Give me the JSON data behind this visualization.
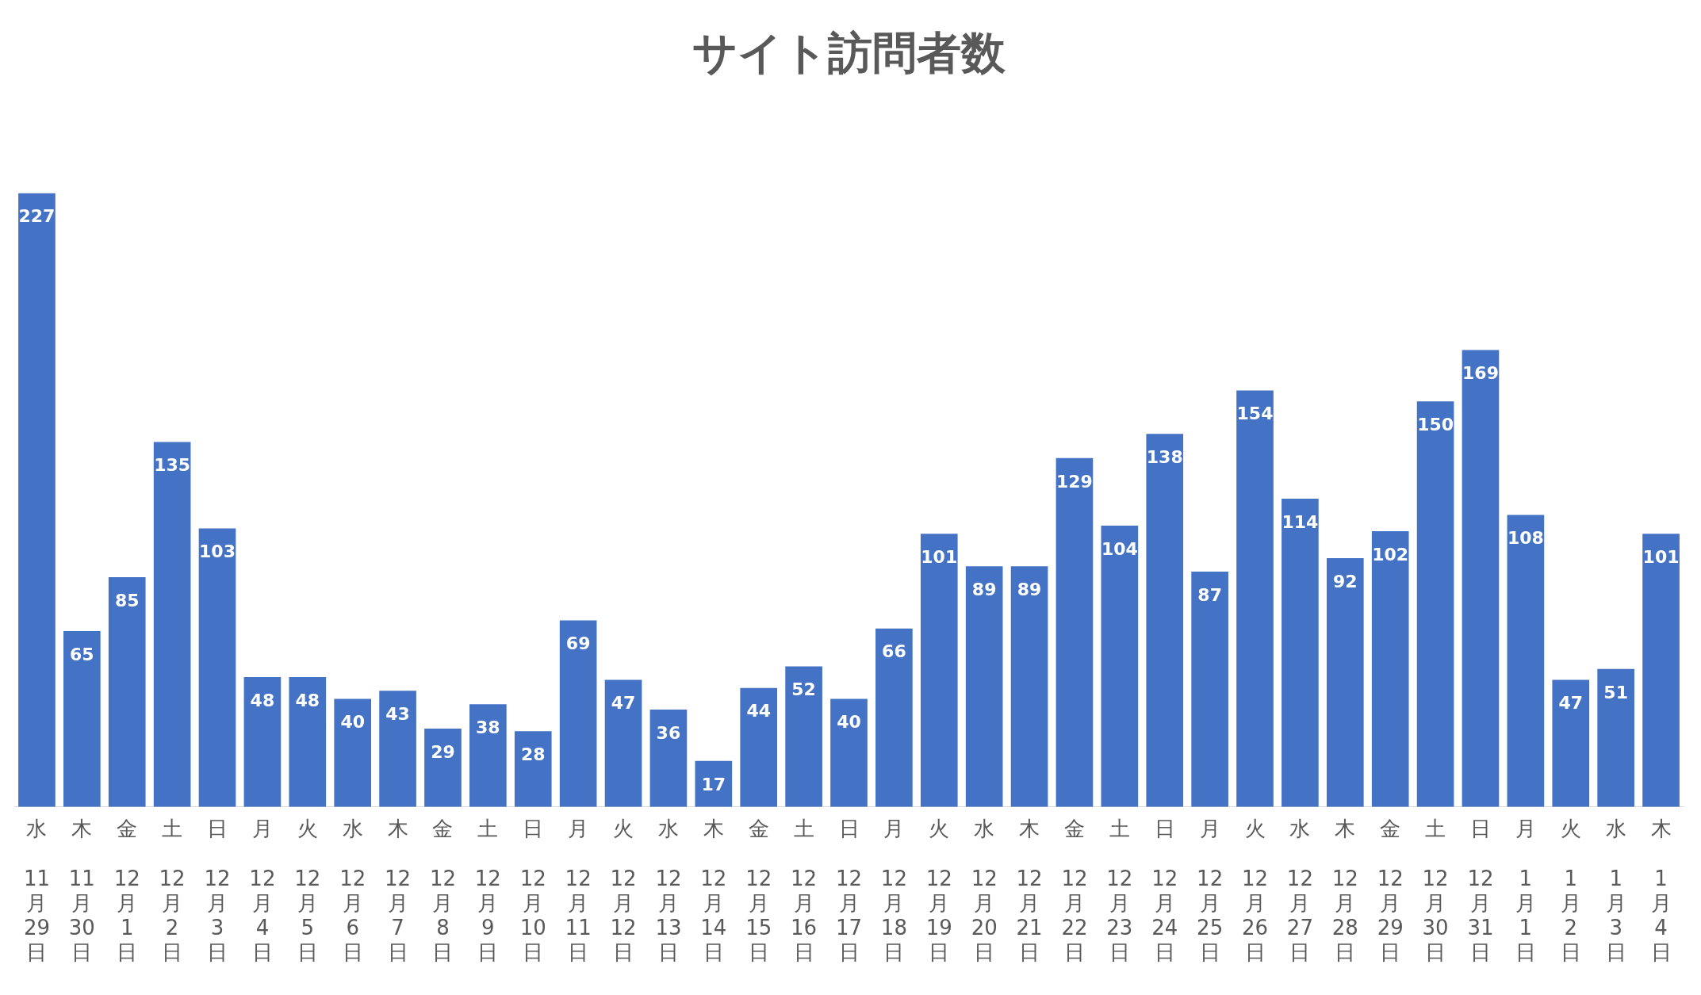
{
  "chart_data": {
    "type": "bar",
    "title": "サイト訪問者数",
    "categories": [
      "水\n11月29日",
      "木\n11月30日",
      "金\n12月1日",
      "土\n12月2日",
      "日\n12月3日",
      "月\n12月4日",
      "火\n12月5日",
      "水\n12月6日",
      "木\n12月7日",
      "金\n12月8日",
      "土\n12月9日",
      "日\n12月10日",
      "月\n12月11日",
      "火\n12月12日",
      "水\n12月13日",
      "木\n12月14日",
      "金\n12月15日",
      "土\n12月16日",
      "日\n12月17日",
      "月\n12月18日",
      "火\n12月19日",
      "水\n12月20日",
      "木\n12月21日",
      "金\n12月22日",
      "土\n12月23日",
      "日\n12月24日",
      "月\n12月25日",
      "火\n12月26日",
      "水\n12月27日",
      "木\n12月28日",
      "金\n12月29日",
      "土\n12月30日",
      "日\n12月31日",
      "月\n1月1日",
      "火\n1月2日",
      "水\n1月3日",
      "木\n1月4日"
    ],
    "values": [
      227,
      65,
      85,
      135,
      103,
      48,
      48,
      40,
      43,
      29,
      38,
      28,
      69,
      47,
      36,
      17,
      44,
      52,
      40,
      66,
      101,
      89,
      89,
      129,
      104,
      138,
      87,
      154,
      114,
      92,
      102,
      150,
      169,
      108,
      47,
      51,
      101
    ],
    "color": "#4472c4",
    "data_labels": true,
    "grid": false,
    "legend": false,
    "tick_labels": "x"
  }
}
